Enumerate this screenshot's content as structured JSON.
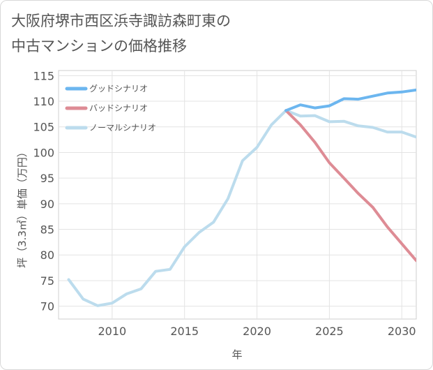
{
  "title": {
    "line1": "大阪府堺市西区浜寺諏訪森町東の",
    "line2": "中古マンションの価格推移"
  },
  "chart_data": {
    "type": "line",
    "xlabel": "年",
    "ylabel": "坪（3.3㎡）単価（万円）",
    "xlim": [
      2006.3,
      2031
    ],
    "ylim": [
      67.5,
      116
    ],
    "xticks": [
      2010,
      2015,
      2020,
      2025,
      2030
    ],
    "yticks": [
      70,
      75,
      80,
      85,
      90,
      95,
      100,
      105,
      110,
      115
    ],
    "grid": true,
    "legend_position": "top-left",
    "series": [
      {
        "name": "グッドシナリオ",
        "color": "#6cb6ef",
        "x": [
          2022,
          2023,
          2024,
          2025,
          2026,
          2027,
          2028,
          2029,
          2030,
          2031
        ],
        "y": [
          108.2,
          109.3,
          108.7,
          109.1,
          110.5,
          110.4,
          111.0,
          111.6,
          111.8,
          112.2
        ]
      },
      {
        "name": "バッドシナリオ",
        "color": "#de8c95",
        "x": [
          2022,
          2023,
          2024,
          2025,
          2026,
          2027,
          2028,
          2029,
          2030,
          2031
        ],
        "y": [
          108.2,
          105.4,
          102.0,
          98.0,
          95.0,
          92.0,
          89.3,
          85.5,
          82.2,
          78.9
        ]
      },
      {
        "name": "ノーマルシナリオ",
        "color": "#bcdced",
        "x": [
          2007,
          2008,
          2009,
          2010,
          2011,
          2012,
          2013,
          2014,
          2015,
          2016,
          2017,
          2018,
          2019,
          2020,
          2021,
          2022,
          2023,
          2024,
          2025,
          2026,
          2027,
          2028,
          2029,
          2030,
          2031
        ],
        "y": [
          75.2,
          71.4,
          70.1,
          70.6,
          72.4,
          73.4,
          76.8,
          77.2,
          81.6,
          84.4,
          86.4,
          91.0,
          98.4,
          101.0,
          105.4,
          108.2,
          107.1,
          107.2,
          106.0,
          106.1,
          105.2,
          104.9,
          104.0,
          104.0,
          103.0
        ]
      }
    ]
  }
}
